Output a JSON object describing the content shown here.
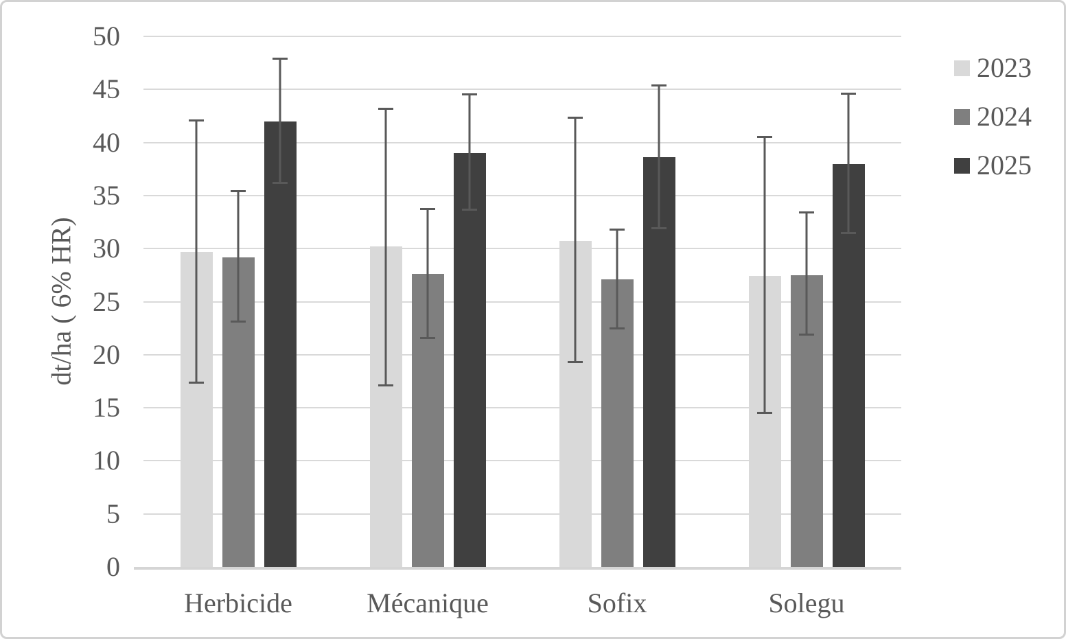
{
  "chart_data": {
    "type": "bar",
    "title": "",
    "xlabel": "",
    "ylabel": "dt/ha ( 6% HR)",
    "ylim": [
      0,
      50
    ],
    "ytick_step": 5,
    "yticks": [
      0,
      5,
      10,
      15,
      20,
      25,
      30,
      35,
      40,
      45,
      50
    ],
    "categories": [
      "Herbicide",
      "Mécanique",
      "Sofix",
      "Solegu"
    ],
    "series": [
      {
        "name": "2023",
        "color": "#d9d9d9",
        "values": [
          29.7,
          30.2,
          30.7,
          27.4
        ],
        "error_low": [
          17.3,
          17.0,
          19.2,
          14.4
        ],
        "error_high": [
          42.2,
          43.3,
          42.4,
          40.6
        ]
      },
      {
        "name": "2024",
        "color": "#7f7f7f",
        "values": [
          29.2,
          27.6,
          27.1,
          27.5
        ],
        "error_low": [
          23.0,
          21.5,
          22.4,
          21.8
        ],
        "error_high": [
          35.5,
          33.8,
          31.9,
          33.5
        ]
      },
      {
        "name": "2025",
        "color": "#404040",
        "values": [
          42.0,
          39.0,
          38.6,
          38.0
        ],
        "error_low": [
          36.1,
          33.6,
          31.8,
          31.4
        ],
        "error_high": [
          48.0,
          44.6,
          45.5,
          44.7
        ]
      }
    ],
    "grid": true,
    "gridline_color": "#d9d9d9",
    "axis_line_color": "#d5d5d5",
    "error_bar_color": "#595959",
    "text_color": "#595959",
    "legend_position": "right"
  }
}
